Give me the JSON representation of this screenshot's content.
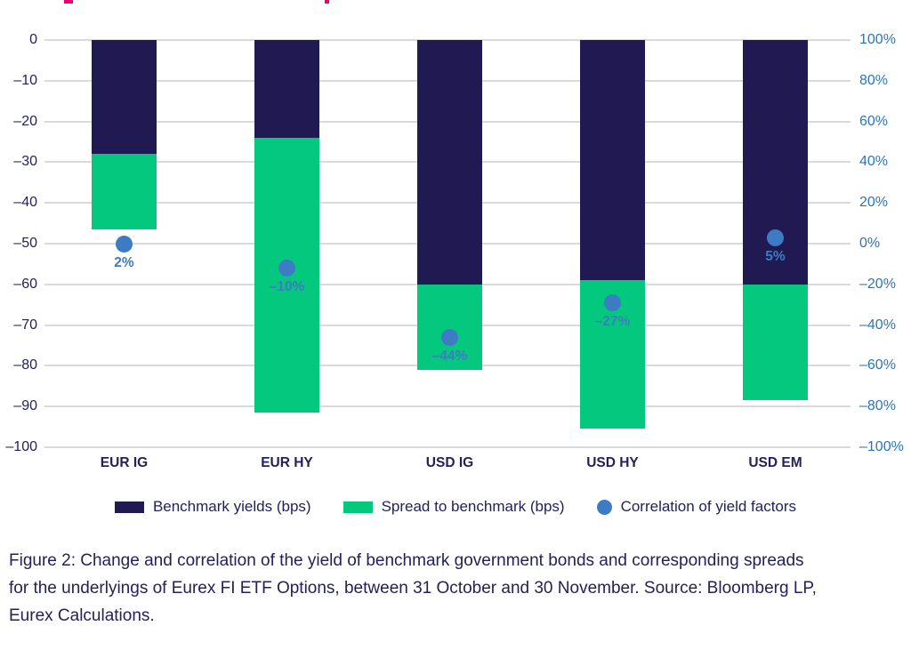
{
  "colors": {
    "benchmark_navy": "#211a52",
    "spread_green": "#04c87e",
    "correlation_blue": "#3d7cc4",
    "right_axis_blue": "#2e74b5",
    "axis_text_navy": "#232157",
    "cropped_title_pink": "#e6007e",
    "gridline_gray": "#dadada"
  },
  "chart_data": {
    "type": "bar",
    "subtype": "stacked-bars-with-point-overlay",
    "categories": [
      "EUR IG",
      "EUR HY",
      "USD IG",
      "USD HY",
      "USD EM"
    ],
    "series": [
      {
        "name": "Benchmark yields (bps)",
        "type": "bar",
        "axis": "left",
        "color": "#211a52",
        "values": [
          -28,
          -24,
          -60,
          -59,
          -60
        ]
      },
      {
        "name": "Spread to benchmark (bps)",
        "type": "bar",
        "axis": "left",
        "color": "#04c87e",
        "stacked_on_previous": true,
        "values": [
          -18.5,
          -67.5,
          -21,
          -36.5,
          -28.5
        ]
      },
      {
        "name": "Correlation of yield factors",
        "type": "point",
        "axis": "right",
        "color": "#3d7cc4",
        "values": [
          2,
          -10,
          -44,
          -27,
          5
        ],
        "labels": [
          "2%",
          "–10%",
          "–44%",
          "–27%",
          "5%"
        ]
      }
    ],
    "left_axis": {
      "min": -100,
      "max": 0,
      "tick_values": [
        0,
        -10,
        -20,
        -30,
        -40,
        -50,
        -60,
        -70,
        -80,
        -90,
        -100
      ],
      "tick_labels": [
        "0",
        "–10",
        "–20",
        "–30",
        "–40",
        "–50",
        "–60",
        "–70",
        "–80",
        "–90",
        "–100"
      ]
    },
    "right_axis": {
      "min": -100,
      "max": 100,
      "tick_values": [
        100,
        80,
        60,
        40,
        20,
        0,
        -20,
        -40,
        -60,
        -80,
        -100
      ],
      "tick_labels": [
        "100%",
        "80%",
        "60%",
        "40%",
        "20%",
        "0%",
        "–20%",
        "–40%",
        "–60%",
        "–80%",
        "–100%"
      ]
    },
    "grid": true,
    "legend_position": "bottom"
  },
  "legend": {
    "items": [
      {
        "label": "Benchmark yields (bps)",
        "marker": "square",
        "color": "#211a52"
      },
      {
        "label": "Spread to benchmark (bps)",
        "marker": "square",
        "color": "#04c87e"
      },
      {
        "label": "Correlation of yield factors",
        "marker": "circle",
        "color": "#3d7cc4"
      }
    ]
  },
  "caption": {
    "lines": [
      "Figure 2: Change and correlation of the yield of benchmark government bonds and corresponding spreads",
      "for the underlyings of Eurex FI ETF Options, between 31 October and 30 November. Source: Bloomberg LP,",
      "Eurex Calculations."
    ]
  }
}
